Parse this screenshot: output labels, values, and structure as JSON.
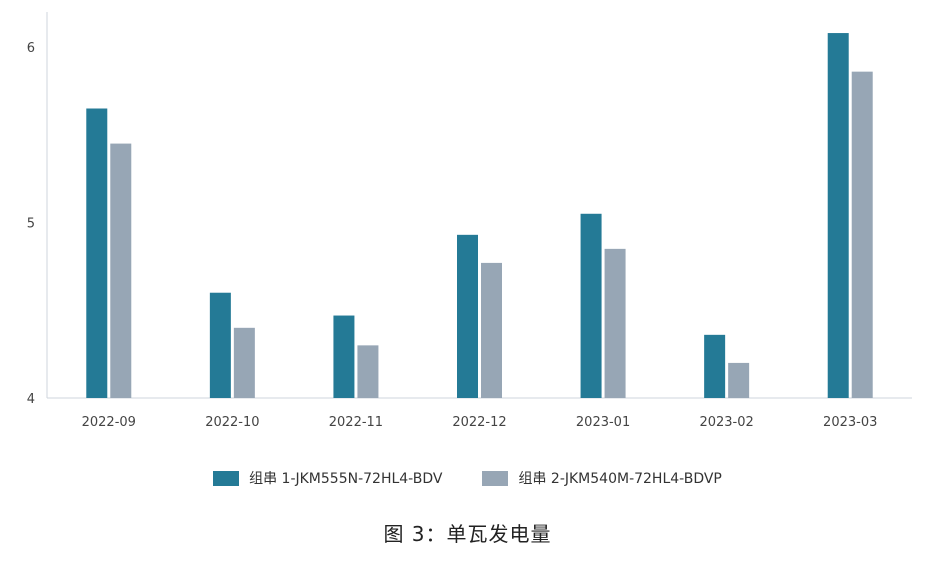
{
  "chart_data": {
    "type": "bar",
    "categories": [
      "2022-09",
      "2022-10",
      "2022-11",
      "2022-12",
      "2023-01",
      "2023-02",
      "2023-03"
    ],
    "series": [
      {
        "name": "组串 1-JKM555N-72HL4-BDV",
        "color": "#247a96",
        "values": [
          5.65,
          4.6,
          4.47,
          4.93,
          5.05,
          4.36,
          6.08
        ]
      },
      {
        "name": "组串 2-JKM540M-72HL4-BDVP",
        "color": "#97a6b5",
        "values": [
          5.45,
          4.4,
          4.3,
          4.77,
          4.85,
          4.2,
          5.86
        ]
      }
    ],
    "yticks": [
      "4",
      "5",
      "6"
    ],
    "ylim": [
      4,
      6.2
    ],
    "xlabel": "",
    "ylabel": "",
    "grid": false,
    "legend_position": "bottom"
  },
  "caption": "图 3：单瓦发电量"
}
